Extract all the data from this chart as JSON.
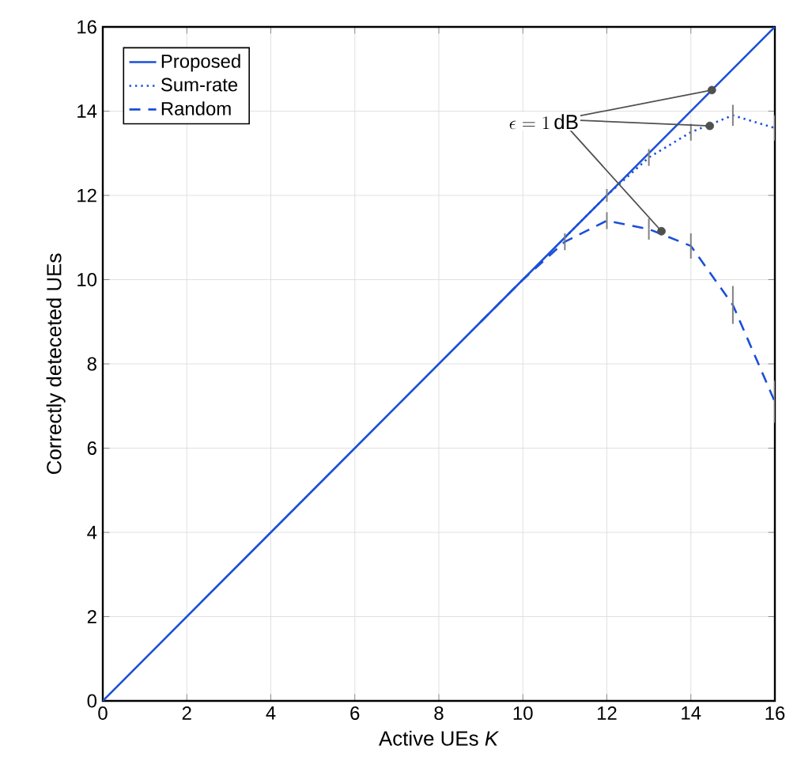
{
  "chart_data": {
    "type": "line",
    "xlabel": "Active UEs *K*",
    "ylabel": "Correctly deteceted UEs",
    "x": [
      0,
      1,
      2,
      3,
      4,
      5,
      6,
      7,
      8,
      9,
      10,
      11,
      12,
      13,
      14,
      15,
      16
    ],
    "series": [
      {
        "name": "Proposed",
        "color": "#1a4fd8",
        "line_style": "solid",
        "values": [
          0,
          1,
          2,
          3,
          4,
          5,
          6,
          7,
          8,
          9,
          10,
          11,
          12,
          13,
          14,
          15,
          16
        ]
      },
      {
        "name": "Sum-rate",
        "color": "#1a4fd8",
        "line_style": "dotted",
        "values": [
          null,
          null,
          null,
          null,
          null,
          null,
          null,
          null,
          null,
          null,
          null,
          11,
          12,
          12.9,
          13.5,
          13.9,
          13.6
        ],
        "errors": [
          null,
          null,
          null,
          null,
          null,
          null,
          null,
          null,
          null,
          null,
          null,
          null,
          0.15,
          0.2,
          0.2,
          0.25,
          0.3
        ]
      },
      {
        "name": "Random",
        "color": "#1a4fd8",
        "line_style": "dashed",
        "values": [
          null,
          null,
          null,
          null,
          null,
          null,
          null,
          null,
          null,
          9,
          10,
          10.9,
          11.4,
          11.2,
          10.8,
          9.4,
          7.1
        ],
        "errors": [
          null,
          null,
          null,
          null,
          null,
          null,
          null,
          null,
          null,
          null,
          null,
          0.2,
          0.2,
          0.25,
          0.3,
          0.45,
          0.5
        ]
      },
      {
        "type": "scatter",
        "color": "#505050",
        "marker": "circle",
        "x": [
          14.5,
          14.45,
          13.3
        ],
        "values": [
          14.5,
          13.65,
          11.15
        ]
      }
    ],
    "annotations": [
      {
        "text": "\\epsilon = 1\\,\\mathrm{dB}",
        "x": 14.5,
        "y": 14.5
      }
    ],
    "xlim": [
      0,
      16
    ],
    "ylim": [
      0,
      16
    ],
    "xticks": [
      0,
      2,
      4,
      6,
      8,
      10,
      12,
      14,
      16
    ],
    "yticks": [
      0,
      2,
      4,
      6,
      8,
      10,
      12,
      14,
      16
    ],
    "grid": true,
    "legend": "top left"
  }
}
